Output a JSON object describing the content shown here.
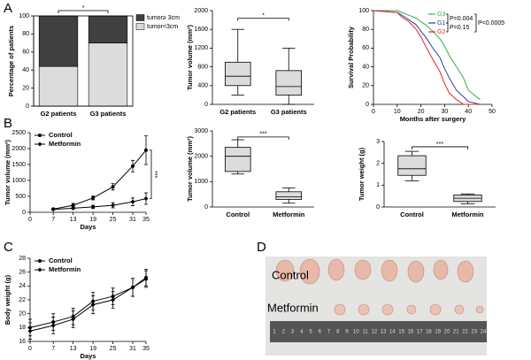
{
  "panel_labels": [
    "A",
    "B",
    "C",
    "D"
  ],
  "chart_data": [
    {
      "type": "stacked_bar",
      "ylabel": "Percentage of patients",
      "categories": [
        "G2 patients",
        "G3 patients"
      ],
      "series": [
        {
          "name": "tumor<3cm",
          "color": "#dcdcdc",
          "values": [
            44,
            70
          ]
        },
        {
          "name": "tumor≥ 3cm",
          "color": "#404040",
          "values": [
            56,
            30
          ]
        }
      ],
      "ylim": [
        0,
        100
      ],
      "yticks": [
        0,
        20,
        40,
        60,
        80,
        100
      ],
      "significance": "*"
    },
    {
      "type": "box",
      "ylabel": "Tumor volume (mm³)",
      "categories": [
        "G2 patients",
        "G3 patients"
      ],
      "boxes": [
        {
          "min": 200,
          "q1": 400,
          "median": 600,
          "q3": 900,
          "max": 1600
        },
        {
          "min": 0,
          "q1": 200,
          "median": 380,
          "q3": 720,
          "max": 1200
        }
      ],
      "color": "#dcdcdc",
      "ylim": [
        0,
        2000
      ],
      "yticks": [
        0,
        400,
        800,
        1200,
        1600,
        2000
      ],
      "significance": "*"
    },
    {
      "type": "survival",
      "ylabel": "Survival Probability",
      "xlabel": "Months after surgery",
      "x": [
        0,
        10,
        12,
        15,
        18,
        20,
        22,
        25,
        28,
        30,
        32,
        35,
        38,
        40,
        45
      ],
      "series": [
        {
          "name": "G3",
          "color": "#2fb24a",
          "values": [
            100,
            100,
            98,
            95,
            92,
            88,
            85,
            78,
            70,
            62,
            52,
            40,
            28,
            15,
            5
          ]
        },
        {
          "name": "G1",
          "color": "#2b3d9c",
          "values": [
            100,
            98,
            95,
            90,
            85,
            78,
            72,
            60,
            50,
            38,
            28,
            15,
            8,
            3,
            0
          ]
        },
        {
          "name": "G2",
          "color": "#e8202a",
          "values": [
            100,
            98,
            93,
            88,
            80,
            72,
            62,
            48,
            35,
            22,
            12,
            5,
            0,
            0,
            0
          ]
        }
      ],
      "annotations": [
        "P=0.004",
        "P=0.15",
        "P<0.0005"
      ],
      "xlim": [
        0,
        50
      ],
      "xticks": [
        0,
        10,
        20,
        30,
        40,
        50
      ],
      "ylim": [
        0,
        100
      ],
      "yticks": [
        0,
        20,
        40,
        60,
        80,
        100
      ]
    },
    {
      "type": "line_error",
      "ylabel": "Tumor volume (mm³)",
      "xlabel": "Days",
      "x": [
        7,
        13,
        19,
        25,
        31,
        35
      ],
      "series": [
        {
          "name": "Control",
          "color": "#000000",
          "marker": "circle",
          "values": [
            100,
            220,
            450,
            800,
            1450,
            1950
          ],
          "errors": [
            20,
            60,
            60,
            100,
            180,
            450
          ]
        },
        {
          "name": "Metformin",
          "color": "#000000",
          "marker": "diamond",
          "values": [
            90,
            130,
            170,
            220,
            330,
            430
          ],
          "errors": [
            20,
            40,
            50,
            80,
            120,
            180
          ]
        }
      ],
      "xlim": [
        0,
        35
      ],
      "xticks": [
        0,
        7,
        13,
        19,
        25,
        31,
        35
      ],
      "ylim": [
        0,
        2500
      ],
      "yticks": [
        0,
        500,
        1000,
        1500,
        2000,
        2500
      ],
      "significance": "***"
    },
    {
      "type": "box",
      "ylabel": "Tumor volume (mm³)",
      "categories": [
        "Control",
        "Metformin"
      ],
      "boxes": [
        {
          "min": 1300,
          "q1": 1400,
          "median": 2000,
          "q3": 2350,
          "max": 2650
        },
        {
          "min": 150,
          "q1": 300,
          "median": 400,
          "q3": 600,
          "max": 750
        }
      ],
      "color": "#dcdcdc",
      "ylim": [
        0,
        3000
      ],
      "yticks": [
        0,
        1000,
        2000,
        3000
      ],
      "significance": "***"
    },
    {
      "type": "box",
      "ylabel": "Tumor weight (g)",
      "categories": [
        "Control",
        "Metformin"
      ],
      "boxes": [
        {
          "min": 1.2,
          "q1": 1.45,
          "median": 1.75,
          "q3": 2.35,
          "max": 2.55
        },
        {
          "min": 0.15,
          "q1": 0.25,
          "median": 0.4,
          "q3": 0.55,
          "max": 0.6
        }
      ],
      "color": "#dcdcdc",
      "ylim": [
        0,
        3
      ],
      "yticks": [
        0,
        1,
        2,
        3
      ],
      "significance": "***"
    },
    {
      "type": "line_error",
      "ylabel": "Body weight (g)",
      "xlabel": "Days",
      "x": [
        0,
        7,
        13,
        19,
        25,
        31,
        35
      ],
      "series": [
        {
          "name": "Control",
          "color": "#000000",
          "marker": "circle",
          "values": [
            18,
            18.8,
            19.6,
            21.8,
            22.5,
            23.8,
            25.2
          ],
          "errors": [
            1.2,
            1.2,
            1.2,
            1.3,
            1.2,
            1.3,
            1.2
          ]
        },
        {
          "name": "Metformin",
          "color": "#000000",
          "marker": "diamond",
          "values": [
            17.5,
            18.3,
            19.2,
            21.3,
            22,
            23.8,
            25
          ],
          "errors": [
            1.2,
            1.2,
            1.2,
            1.3,
            1.2,
            1.3,
            1.2
          ]
        }
      ],
      "xlim": [
        0,
        35
      ],
      "xticks": [
        0,
        7,
        13,
        19,
        25,
        31,
        35
      ],
      "ylim": [
        16,
        28
      ],
      "yticks": [
        16,
        18,
        20,
        22,
        24,
        26,
        28
      ]
    }
  ],
  "photo": {
    "row_labels": [
      "Control",
      "Metformin"
    ],
    "ruler_numbers": [
      "1",
      "2",
      "3",
      "4",
      "5",
      "6",
      "7",
      "8",
      "9",
      "10",
      "11",
      "12",
      "13",
      "14",
      "15",
      "16",
      "17",
      "18",
      "19",
      "20",
      "21",
      "22",
      "23",
      "24"
    ]
  }
}
